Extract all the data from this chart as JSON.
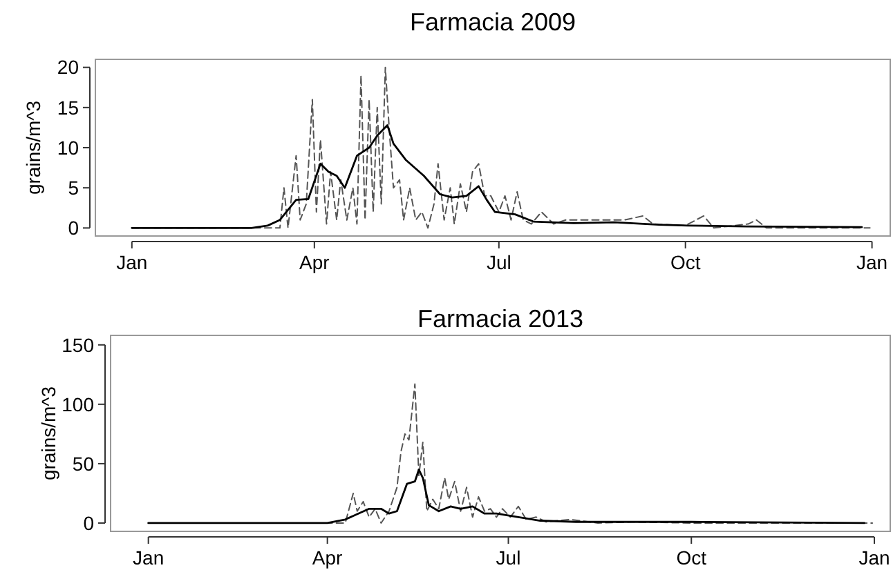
{
  "chart_data": [
    {
      "type": "line",
      "title": "Farmacia 2009",
      "ylabel": "grains/m^3",
      "xlim": [
        "2008-12-14",
        "2010-01-10"
      ],
      "xticks": [
        {
          "value": "2009-01-01",
          "label": "Jan"
        },
        {
          "value": "2009-04-01",
          "label": "Apr"
        },
        {
          "value": "2009-07-01",
          "label": "Jul"
        },
        {
          "value": "2009-10-01",
          "label": "Oct"
        },
        {
          "value": "2010-01-01",
          "label": "Jan"
        }
      ],
      "ylim": [
        -1,
        21
      ],
      "yticks": [
        0,
        5,
        10,
        15,
        20
      ],
      "grid": false,
      "series": [
        {
          "color": "#555555",
          "line_style": "dashed",
          "x": [
            "2009-01-01",
            "2009-03-01",
            "2009-03-15",
            "2009-03-17",
            "2009-03-19",
            "2009-03-23",
            "2009-03-25",
            "2009-03-28",
            "2009-03-31",
            "2009-04-02",
            "2009-04-04",
            "2009-04-07",
            "2009-04-09",
            "2009-04-12",
            "2009-04-14",
            "2009-04-17",
            "2009-04-20",
            "2009-04-22",
            "2009-04-24",
            "2009-04-26",
            "2009-04-28",
            "2009-04-30",
            "2009-05-02",
            "2009-05-04",
            "2009-05-06",
            "2009-05-08",
            "2009-05-10",
            "2009-05-13",
            "2009-05-15",
            "2009-05-18",
            "2009-05-21",
            "2009-05-24",
            "2009-05-27",
            "2009-05-30",
            "2009-06-01",
            "2009-06-04",
            "2009-06-07",
            "2009-06-09",
            "2009-06-12",
            "2009-06-15",
            "2009-06-18",
            "2009-06-21",
            "2009-06-24",
            "2009-06-27",
            "2009-07-01",
            "2009-07-04",
            "2009-07-07",
            "2009-07-10",
            "2009-07-13",
            "2009-07-17",
            "2009-07-22",
            "2009-07-28",
            "2009-08-03",
            "2009-08-15",
            "2009-09-01",
            "2009-09-10",
            "2009-09-15",
            "2009-10-01",
            "2009-10-10",
            "2009-10-15",
            "2009-11-01",
            "2009-11-05",
            "2009-11-10",
            "2009-12-31"
          ],
          "values": [
            0,
            0,
            0,
            5,
            0,
            9,
            1,
            3,
            16,
            2,
            11,
            0.5,
            7,
            1,
            6,
            1,
            5,
            0.5,
            19,
            1,
            16,
            2,
            15,
            3,
            20,
            12,
            5,
            6,
            1,
            5,
            1,
            2,
            0,
            3,
            8,
            1,
            5,
            0.5,
            5.5,
            2,
            7,
            8,
            4,
            4,
            2,
            4,
            1,
            4.5,
            1,
            0.5,
            2,
            0.5,
            1,
            1,
            1,
            1.5,
            0.5,
            0.3,
            1.5,
            0,
            0.5,
            1,
            0,
            0
          ]
        },
        {
          "color": "#000000",
          "line_style": "solid",
          "x": [
            "2009-01-01",
            "2009-03-01",
            "2009-03-09",
            "2009-03-15",
            "2009-03-23",
            "2009-03-29",
            "2009-04-04",
            "2009-04-08",
            "2009-04-12",
            "2009-04-16",
            "2009-04-22",
            "2009-04-28",
            "2009-05-02",
            "2009-05-07",
            "2009-05-10",
            "2009-05-16",
            "2009-05-25",
            "2009-06-02",
            "2009-06-08",
            "2009-06-15",
            "2009-06-21",
            "2009-06-25",
            "2009-06-29",
            "2009-07-09",
            "2009-07-18",
            "2009-08-07",
            "2009-08-27",
            "2009-09-18",
            "2009-10-02",
            "2009-10-31",
            "2009-12-27"
          ],
          "values": [
            0,
            0,
            0.3,
            1,
            3.5,
            3.6,
            8,
            7,
            6.5,
            5,
            9,
            10,
            11.5,
            12.8,
            10.5,
            8.5,
            6.5,
            4.2,
            3.8,
            4,
            5.2,
            3.5,
            2,
            1.7,
            0.8,
            0.6,
            0.7,
            0.4,
            0.3,
            0.2,
            0.1
          ]
        }
      ]
    },
    {
      "type": "line",
      "title": "Farmacia 2013",
      "ylabel": "grains/m^3",
      "xlim": [
        "2012-12-13",
        "2014-01-09"
      ],
      "xticks": [
        {
          "value": "2013-01-01",
          "label": "Jan"
        },
        {
          "value": "2013-04-01",
          "label": "Apr"
        },
        {
          "value": "2013-07-01",
          "label": "Jul"
        },
        {
          "value": "2013-10-01",
          "label": "Oct"
        },
        {
          "value": "2014-01-01",
          "label": "Jan"
        }
      ],
      "ylim": [
        -7,
        158
      ],
      "yticks": [
        0,
        50,
        100,
        150
      ],
      "grid": false,
      "series": [
        {
          "color": "#555555",
          "line_style": "dashed",
          "x": [
            "2013-01-01",
            "2013-04-01",
            "2013-04-10",
            "2013-04-14",
            "2013-04-16",
            "2013-04-19",
            "2013-04-22",
            "2013-04-25",
            "2013-04-28",
            "2013-05-02",
            "2013-05-06",
            "2013-05-08",
            "2013-05-10",
            "2013-05-12",
            "2013-05-15",
            "2013-05-17",
            "2013-05-19",
            "2013-05-21",
            "2013-05-24",
            "2013-05-27",
            "2013-05-30",
            "2013-06-01",
            "2013-06-04",
            "2013-06-07",
            "2013-06-10",
            "2013-06-13",
            "2013-06-16",
            "2013-06-19",
            "2013-06-22",
            "2013-06-25",
            "2013-06-28",
            "2013-07-02",
            "2013-07-06",
            "2013-07-10",
            "2013-07-15",
            "2013-07-20",
            "2013-08-01",
            "2013-08-15",
            "2013-09-01",
            "2013-10-01",
            "2013-12-31"
          ],
          "values": [
            0,
            0,
            0,
            25,
            10,
            18,
            5,
            12,
            0,
            10,
            30,
            60,
            75,
            70,
            117,
            40,
            68,
            10,
            20,
            12,
            38,
            20,
            35,
            10,
            30,
            5,
            22,
            10,
            12,
            5,
            12,
            5,
            14,
            3,
            5,
            1,
            3,
            0,
            1,
            0,
            0
          ]
        },
        {
          "color": "#000000",
          "line_style": "solid",
          "x": [
            "2013-01-01",
            "2013-04-01",
            "2013-04-10",
            "2013-04-22",
            "2013-04-28",
            "2013-05-02",
            "2013-05-06",
            "2013-05-11",
            "2013-05-15",
            "2013-05-17",
            "2013-05-19",
            "2013-05-22",
            "2013-05-27",
            "2013-06-02",
            "2013-06-07",
            "2013-06-13",
            "2013-06-19",
            "2013-06-25",
            "2013-07-06",
            "2013-07-17",
            "2013-08-04",
            "2013-10-01",
            "2013-12-27"
          ],
          "values": [
            0,
            0,
            3,
            12,
            12,
            8,
            10,
            33,
            35,
            45,
            38,
            15,
            10,
            14,
            12,
            14,
            8,
            8,
            5,
            2,
            1,
            1,
            0
          ]
        }
      ]
    }
  ]
}
